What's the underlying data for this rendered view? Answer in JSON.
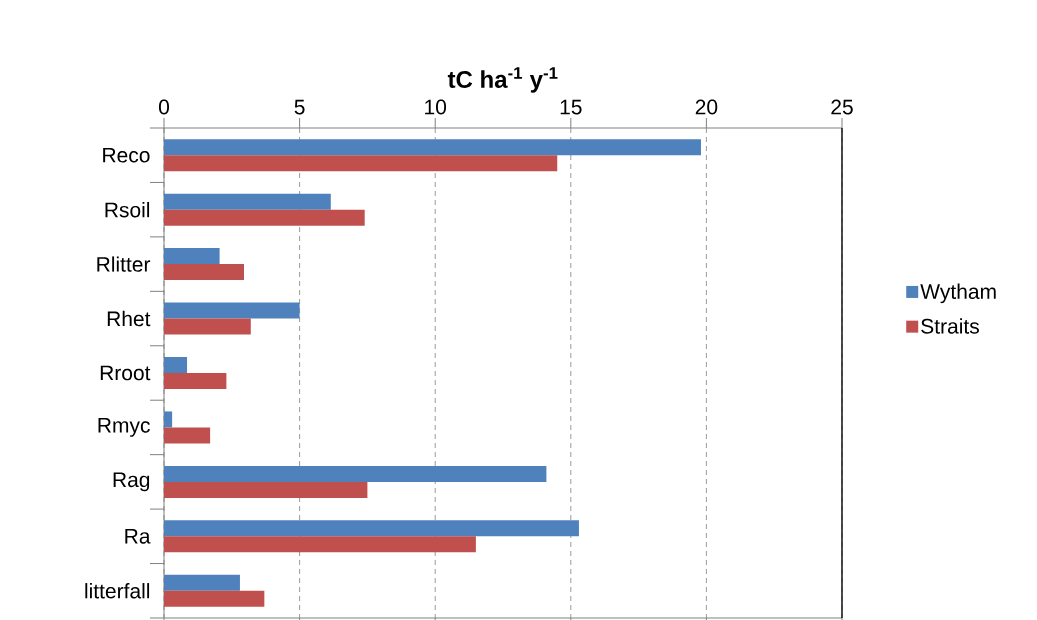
{
  "chart_data": {
    "type": "bar",
    "orientation": "horizontal",
    "xlabel": "tC ha$^{-1}$ y$^{-1}$",
    "categories": [
      "Reco",
      "Rsoil",
      "Rlitter",
      "Rhet",
      "Rroot",
      "Rmyc",
      "Rag",
      "Ra",
      "litterfall"
    ],
    "series": [
      {
        "name": "Wytham",
        "color": "#4f81bd",
        "values": [
          19.8,
          6.15,
          2.05,
          5.0,
          0.85,
          0.3,
          14.1,
          15.3,
          2.8
        ]
      },
      {
        "name": "Straits",
        "color": "#c0504d",
        "values": [
          14.5,
          7.4,
          2.95,
          3.2,
          2.3,
          1.7,
          7.5,
          11.5,
          3.7
        ]
      }
    ],
    "xlim": [
      0,
      25
    ],
    "xticks": [
      0,
      5,
      10,
      15,
      20,
      25
    ],
    "grid": "x",
    "legend": "right"
  }
}
